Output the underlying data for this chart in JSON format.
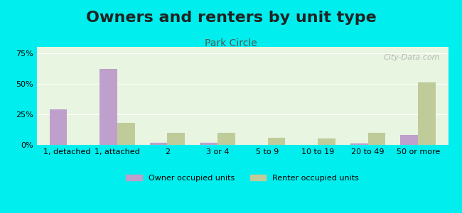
{
  "title": "Owners and renters by unit type",
  "subtitle": "Park Circle",
  "categories": [
    "1, detached",
    "1, attached",
    "2",
    "3 or 4",
    "5 to 9",
    "10 to 19",
    "20 to 49",
    "50 or more"
  ],
  "owner_values": [
    29,
    62,
    2,
    2,
    0,
    0,
    1,
    8
  ],
  "renter_values": [
    0,
    18,
    10,
    10,
    6,
    5,
    10,
    51
  ],
  "owner_color": "#bf9fcc",
  "renter_color": "#bfcc99",
  "background_color": "#00eeee",
  "plot_bg_gradient_top": "#f0fff0",
  "plot_bg_gradient_bottom": "#ffffff",
  "ylim": [
    0,
    80
  ],
  "yticks": [
    0,
    25,
    50,
    75
  ],
  "ytick_labels": [
    "0%",
    "25%",
    "50%",
    "75%"
  ],
  "legend_owner": "Owner occupied units",
  "legend_renter": "Renter occupied units",
  "title_fontsize": 16,
  "subtitle_fontsize": 10,
  "watermark": "City-Data.com"
}
